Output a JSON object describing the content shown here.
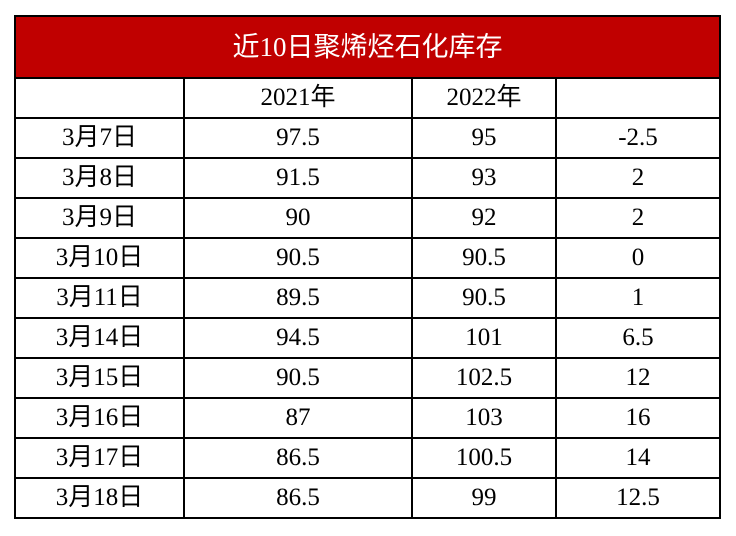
{
  "table": {
    "title": "近10日聚烯烃石化库存",
    "columns": [
      "2021年",
      "2022年"
    ],
    "rows": [
      [
        "3月7日",
        "97.5",
        "95",
        "-2.5"
      ],
      [
        "3月8日",
        "91.5",
        "93",
        "2"
      ],
      [
        "3月9日",
        "90",
        "92",
        "2"
      ],
      [
        "3月10日",
        "90.5",
        "90.5",
        "0"
      ],
      [
        "3月11日",
        "89.5",
        "90.5",
        "1"
      ],
      [
        "3月14日",
        "94.5",
        "101",
        "6.5"
      ],
      [
        "3月15日",
        "90.5",
        "102.5",
        "12"
      ],
      [
        "3月16日",
        "87",
        "103",
        "16"
      ],
      [
        "3月17日",
        "86.5",
        "100.5",
        "14"
      ],
      [
        "3月18日",
        "86.5",
        "99",
        "12.5"
      ]
    ]
  }
}
